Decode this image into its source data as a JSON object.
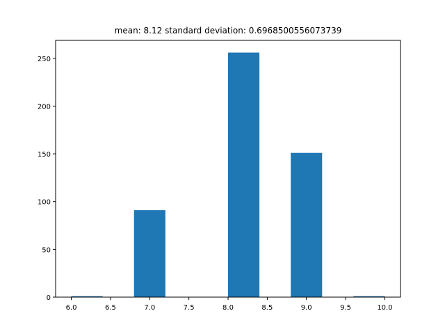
{
  "chart_data": {
    "type": "bar",
    "title": "mean: 8.12 standard deviation: 0.6968500556073739",
    "xlabel": "",
    "ylabel": "",
    "xlim": [
      5.8,
      10.2
    ],
    "ylim": [
      0,
      268.8
    ],
    "x_ticks": [
      "6.0",
      "6.5",
      "7.0",
      "7.5",
      "8.0",
      "8.5",
      "9.0",
      "9.5",
      "10.0"
    ],
    "y_ticks": [
      "0",
      "50",
      "100",
      "150",
      "200",
      "250"
    ],
    "bin_width": 0.4,
    "bins": [
      {
        "start": 6.0,
        "end": 6.4,
        "count": 1
      },
      {
        "start": 6.4,
        "end": 6.8,
        "count": 0
      },
      {
        "start": 6.8,
        "end": 7.2,
        "count": 91
      },
      {
        "start": 7.2,
        "end": 7.6,
        "count": 0
      },
      {
        "start": 7.6,
        "end": 8.0,
        "count": 0
      },
      {
        "start": 8.0,
        "end": 8.4,
        "count": 256
      },
      {
        "start": 8.4,
        "end": 8.8,
        "count": 0
      },
      {
        "start": 8.8,
        "end": 9.2,
        "count": 151
      },
      {
        "start": 9.2,
        "end": 9.6,
        "count": 0
      },
      {
        "start": 9.6,
        "end": 10.0,
        "count": 1
      }
    ],
    "grid": false,
    "legend": "none",
    "bar_color": "#1f77b4",
    "axis_color": "#000000"
  }
}
